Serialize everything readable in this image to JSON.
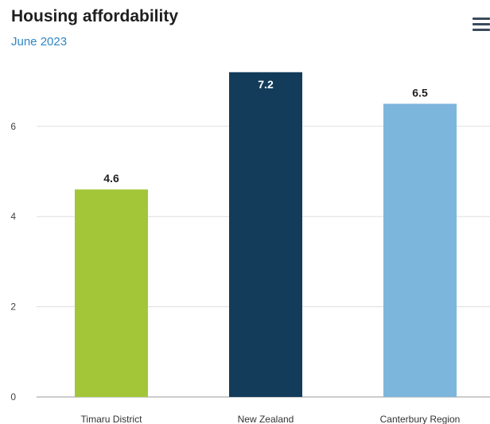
{
  "header": {
    "title": "Housing affordability",
    "subtitle": "June 2023"
  },
  "menu": {
    "icon": "hamburger-menu-icon"
  },
  "colors": {
    "gridline": "#dddddd",
    "axis": "#bbbbbb",
    "subtitle": "#2f86c4"
  },
  "chart_data": {
    "type": "bar",
    "title": "Housing affordability",
    "subtitle": "June 2023",
    "xlabel": "",
    "ylabel": "",
    "categories": [
      "Timaru District",
      "New Zealand",
      "Canterbury Region"
    ],
    "values": [
      4.6,
      7.2,
      6.5
    ],
    "bar_colors": [
      "#a3c639",
      "#123c5a",
      "#7db6dc"
    ],
    "data_labels": [
      "4.6",
      "7.2",
      "6.5"
    ],
    "data_label_colors": [
      "#1f1f1f",
      "#ffffff",
      "#1f1f1f"
    ],
    "data_label_inside": [
      false,
      true,
      false
    ],
    "y_ticks": [
      0,
      2,
      4,
      6
    ],
    "ylim": [
      0,
      7.5
    ],
    "grid": true,
    "legend": "none"
  }
}
